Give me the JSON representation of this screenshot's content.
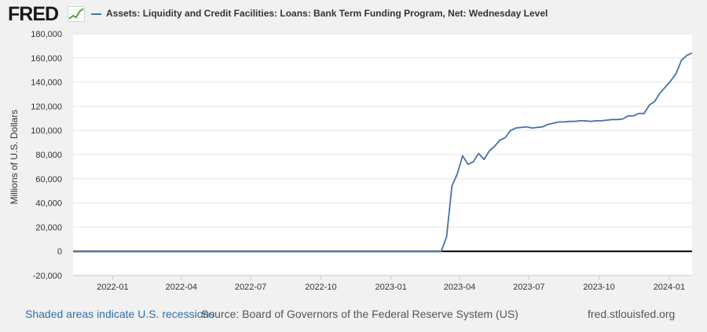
{
  "header": {
    "logo_text": "FRED",
    "logo_icon": "trend-line-icon",
    "series_title": "Assets: Liquidity and Credit Facilities: Loans: Bank Term Funding Program, Net: Wednesday Level",
    "series_color": "#4572a7"
  },
  "footer": {
    "recessions_note": "Shaded areas indicate U.S. recessions",
    "source": "Source: Board of Governors of the Federal Reserve System (US)",
    "site": "fred.stlouisfed.org",
    "link_color": "#2f6fad"
  },
  "chart_data": {
    "type": "line",
    "title": "Assets: Liquidity and Credit Facilities: Loans: Bank Term Funding Program, Net: Wednesday Level",
    "xlabel": "",
    "ylabel": "Millions of U.S. Dollars",
    "ylim": [
      -20000,
      180000
    ],
    "xlim": [
      "2021-11-10",
      "2024-01-31"
    ],
    "yticks": [
      -20000,
      0,
      20000,
      40000,
      60000,
      80000,
      100000,
      120000,
      140000,
      160000,
      180000
    ],
    "ytick_labels": [
      "-20,000",
      "0",
      "20,000",
      "40,000",
      "60,000",
      "80,000",
      "100,000",
      "120,000",
      "140,000",
      "160,000",
      "180,000"
    ],
    "xticks": [
      "2022-01-01",
      "2022-04-01",
      "2022-07-01",
      "2022-10-01",
      "2023-01-01",
      "2023-04-01",
      "2023-07-01",
      "2023-10-01",
      "2024-01-01"
    ],
    "xtick_labels": [
      "2022-01",
      "2022-04",
      "2022-07",
      "2022-10",
      "2023-01",
      "2023-04",
      "2023-07",
      "2023-10",
      "2024-01"
    ],
    "grid": "horizontal",
    "zero_line": true,
    "series": [
      {
        "color": "#4572a7",
        "x": [
          "2021-11-10",
          "2023-03-08",
          "2023-03-15",
          "2023-03-22",
          "2023-03-29",
          "2023-04-05",
          "2023-04-12",
          "2023-04-19",
          "2023-04-26",
          "2023-05-03",
          "2023-05-10",
          "2023-05-17",
          "2023-05-24",
          "2023-05-31",
          "2023-06-07",
          "2023-06-14",
          "2023-06-21",
          "2023-06-28",
          "2023-07-05",
          "2023-07-12",
          "2023-07-19",
          "2023-07-26",
          "2023-08-02",
          "2023-08-09",
          "2023-08-16",
          "2023-08-23",
          "2023-08-30",
          "2023-09-06",
          "2023-09-13",
          "2023-09-20",
          "2023-09-27",
          "2023-10-04",
          "2023-10-11",
          "2023-10-18",
          "2023-10-25",
          "2023-11-01",
          "2023-11-08",
          "2023-11-15",
          "2023-11-22",
          "2023-11-29",
          "2023-12-06",
          "2023-12-13",
          "2023-12-20",
          "2023-12-27",
          "2024-01-03",
          "2024-01-10",
          "2024-01-17",
          "2024-01-24",
          "2024-01-31"
        ],
        "y": [
          0,
          0,
          12000,
          54000,
          64000,
          79000,
          72000,
          74000,
          81000,
          76000,
          83000,
          87000,
          92000,
          94000,
          100000,
          102000,
          102500,
          103000,
          102000,
          102500,
          103000,
          105000,
          106000,
          107000,
          107000,
          107500,
          107500,
          108000,
          108000,
          107500,
          108000,
          108000,
          108500,
          109000,
          109000,
          109500,
          112000,
          112000,
          114000,
          114000,
          121000,
          124000,
          131000,
          136000,
          141000,
          147000,
          158000,
          162000,
          164000
        ]
      }
    ]
  }
}
